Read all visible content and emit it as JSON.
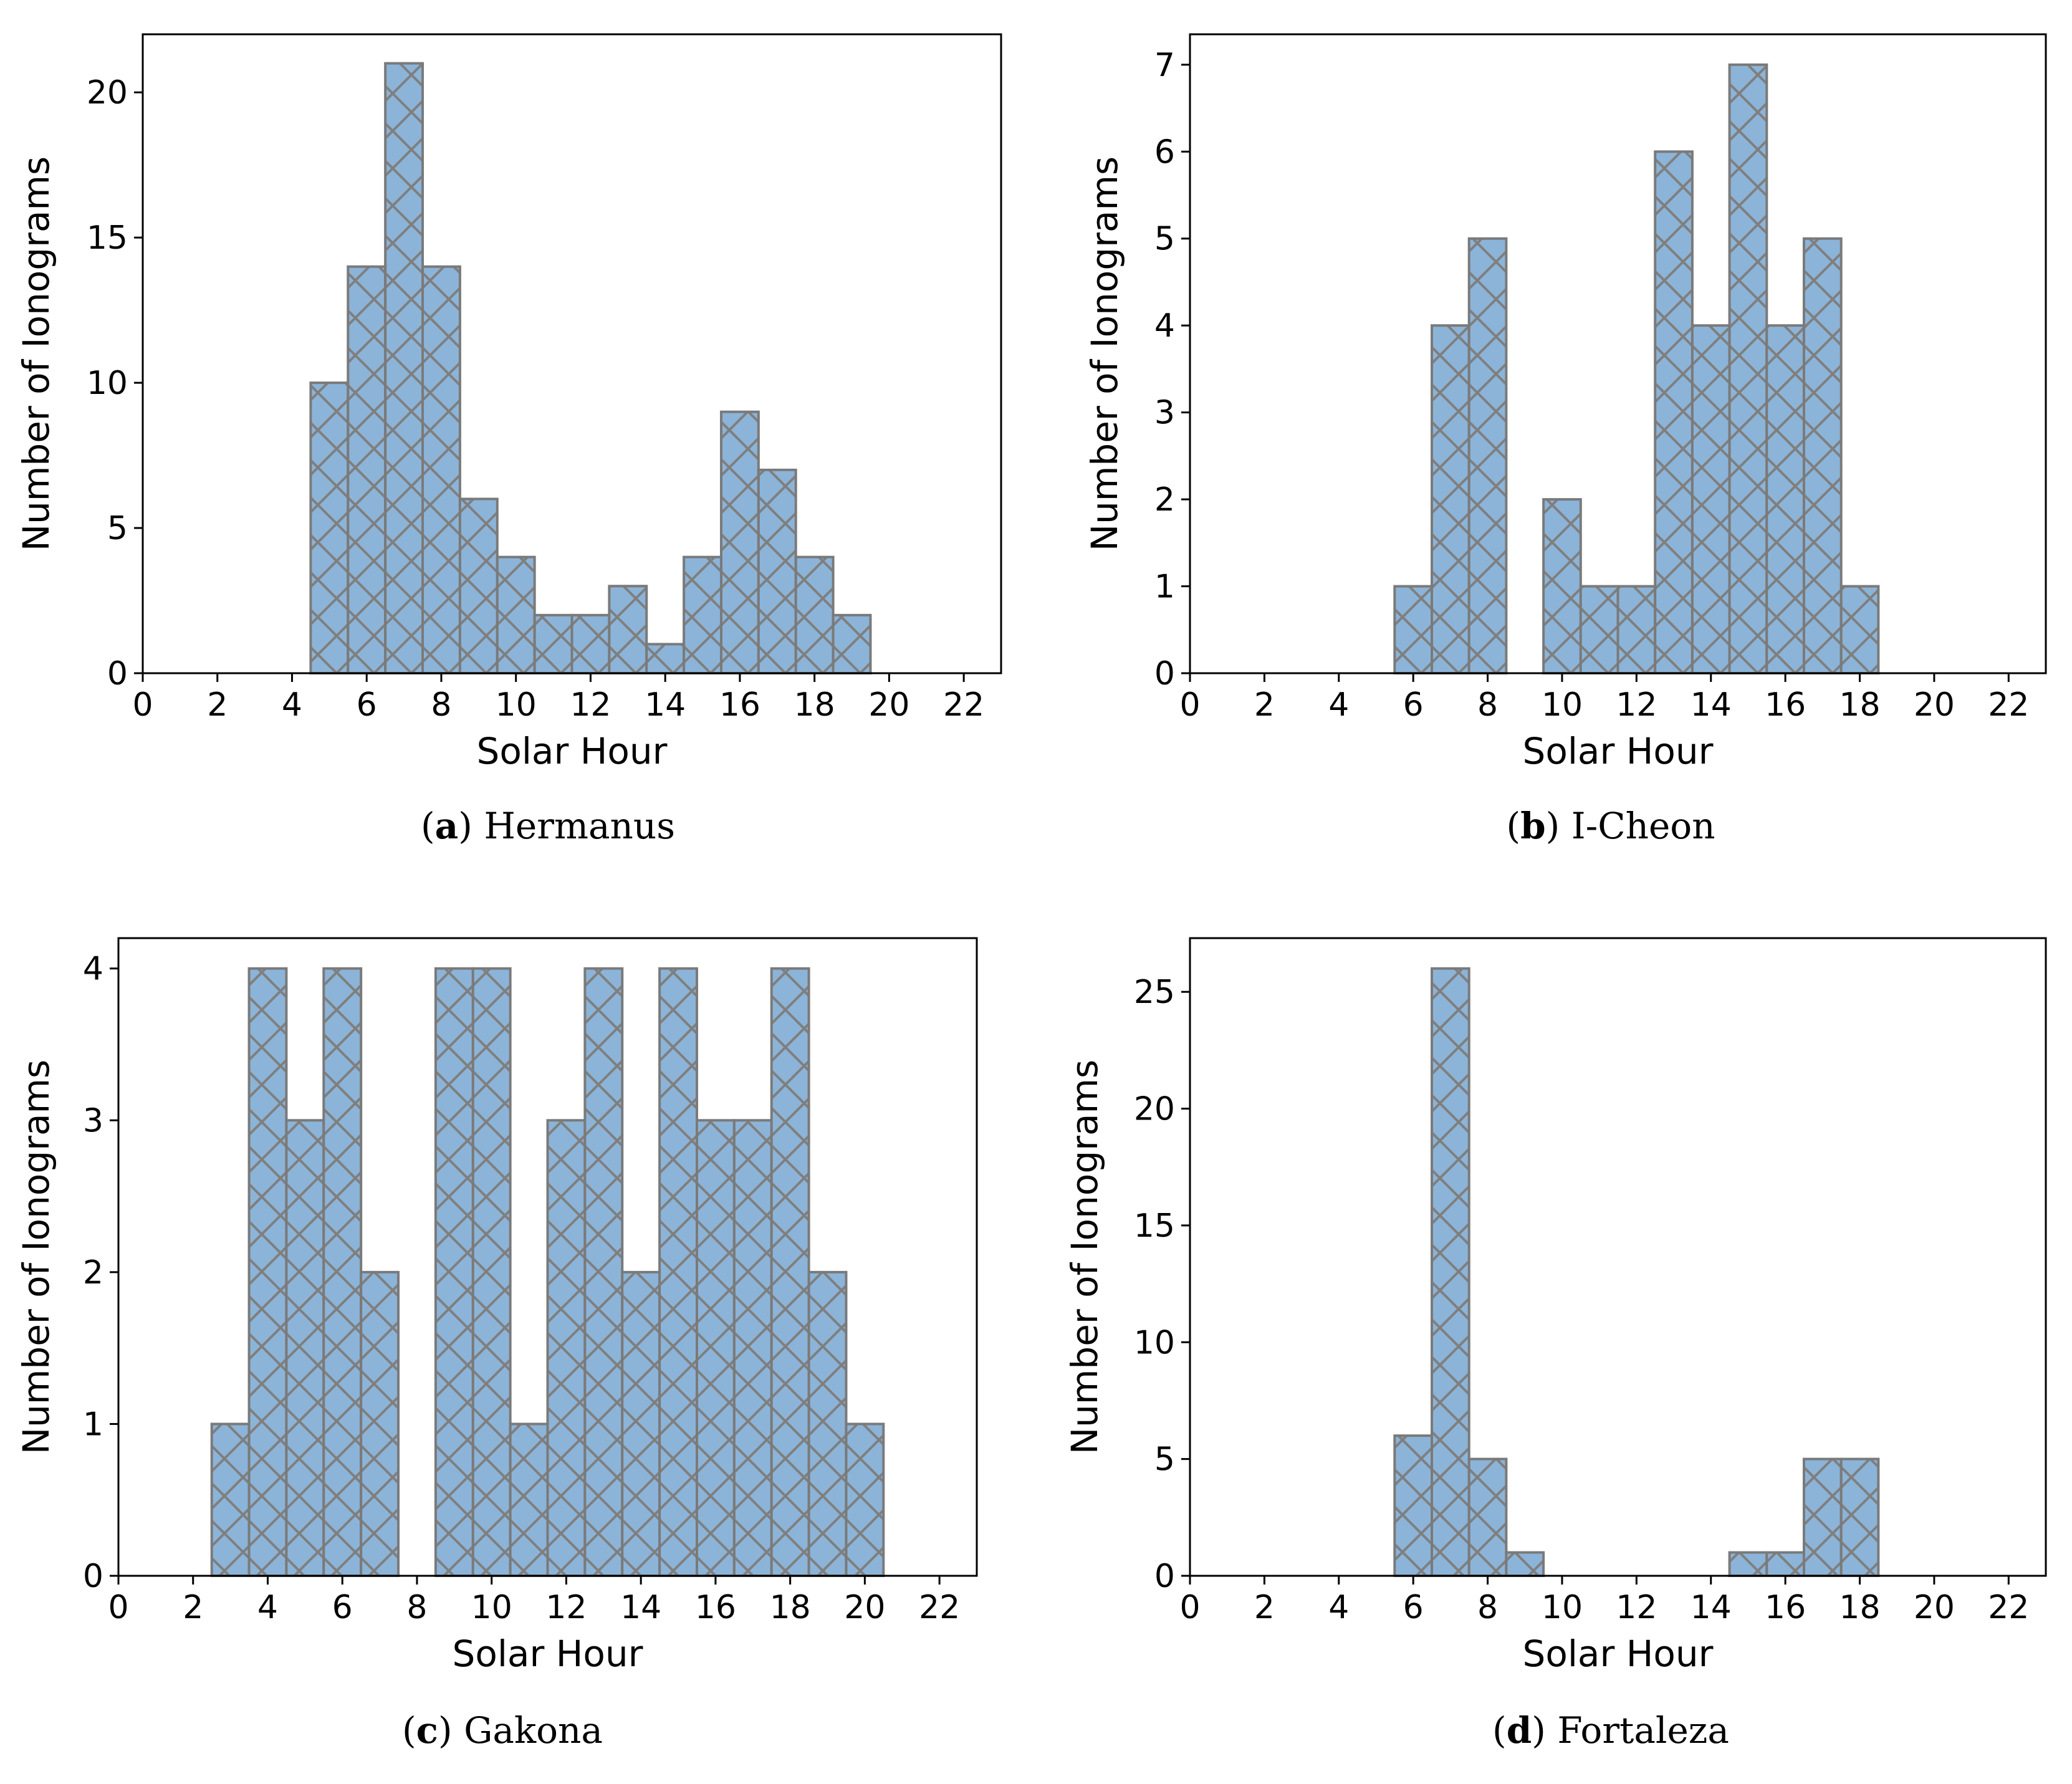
{
  "chart_data": [
    {
      "type": "bar",
      "panel_letter": "a",
      "title": "Hermanus",
      "xlabel": "Solar Hour",
      "ylabel": "Number of Ionograms",
      "xlim": [
        0,
        23
      ],
      "ylim": [
        0,
        22
      ],
      "xticks": [
        0,
        2,
        4,
        6,
        8,
        10,
        12,
        14,
        16,
        18,
        20,
        22
      ],
      "yticks": [
        0,
        5,
        10,
        15,
        20
      ],
      "categories": [
        "5",
        "6",
        "7",
        "8",
        "9",
        "10",
        "11",
        "12",
        "13",
        "14",
        "15",
        "16",
        "17",
        "18",
        "19"
      ],
      "values": [
        10,
        14,
        21,
        14,
        6,
        4,
        2,
        2,
        3,
        1,
        4,
        9,
        7,
        4,
        2
      ]
    },
    {
      "type": "bar",
      "panel_letter": "b",
      "title": "I-Cheon",
      "xlabel": "Solar Hour",
      "ylabel": "Number of Ionograms",
      "xlim": [
        0,
        23
      ],
      "ylim": [
        0,
        7.35
      ],
      "xticks": [
        0,
        2,
        4,
        6,
        8,
        10,
        12,
        14,
        16,
        18,
        20,
        22
      ],
      "yticks": [
        0,
        1,
        2,
        3,
        4,
        5,
        6,
        7
      ],
      "categories": [
        "6",
        "7",
        "8",
        "10",
        "11",
        "12",
        "13",
        "14",
        "15",
        "16",
        "17",
        "18"
      ],
      "values": [
        1,
        4,
        5,
        2,
        1,
        1,
        6,
        4,
        7,
        4,
        5,
        1
      ]
    },
    {
      "type": "bar",
      "panel_letter": "c",
      "title": "Gakona",
      "xlabel": "Solar Hour",
      "ylabel": "Number of Ionograms",
      "xlim": [
        0,
        23
      ],
      "ylim": [
        0,
        4.2
      ],
      "xticks": [
        0,
        2,
        4,
        6,
        8,
        10,
        12,
        14,
        16,
        18,
        20,
        22
      ],
      "yticks": [
        0,
        1,
        2,
        3,
        4
      ],
      "categories": [
        "3",
        "4",
        "5",
        "6",
        "7",
        "9",
        "10",
        "11",
        "12",
        "13",
        "14",
        "15",
        "16",
        "17",
        "18",
        "19",
        "20"
      ],
      "values": [
        1,
        4,
        3,
        4,
        2,
        4,
        4,
        1,
        3,
        4,
        2,
        4,
        3,
        3,
        4,
        2,
        1
      ]
    },
    {
      "type": "bar",
      "panel_letter": "d",
      "title": "Fortaleza",
      "xlabel": "Solar Hour",
      "ylabel": "Number of Ionograms",
      "xlim": [
        0,
        23
      ],
      "ylim": [
        0,
        27.3
      ],
      "xticks": [
        0,
        2,
        4,
        6,
        8,
        10,
        12,
        14,
        16,
        18,
        20,
        22
      ],
      "yticks": [
        0,
        5,
        10,
        15,
        20,
        25
      ],
      "categories": [
        "6",
        "7",
        "8",
        "9",
        "15",
        "16",
        "17",
        "18"
      ],
      "values": [
        6,
        26,
        5,
        1,
        1,
        1,
        5,
        5
      ]
    }
  ],
  "style": {
    "bar_fill": "#8cb4d8",
    "bar_edge": "#7a7a7a",
    "hatch": "#7f7f7f"
  }
}
